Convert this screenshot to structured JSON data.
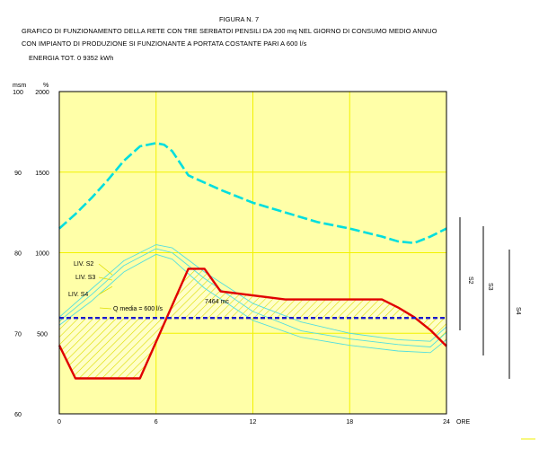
{
  "header": {
    "figure": "FIGURA N. 7",
    "line1": "GRAFICO DI FUNZIONAMENTO DELLA RETE CON TRE SERBATOI PENSILI DA 200 mq NEL GIORNO DI CONSUMO MEDIO ANNUO",
    "line2": "CON IMPIANTO DI PRODUZIONE SI FUNZIONANTE A PORTATA COSTANTE PARI A 600 l/s",
    "energy": "ENERGIA TOT. 0 9352 kWh"
  },
  "chart_data": {
    "type": "line",
    "title": "",
    "xlabel": "ORE",
    "y1label": "msm",
    "y2label": "%",
    "xlim": [
      0,
      24
    ],
    "y1lim": [
      60,
      100
    ],
    "y2lim": [
      0,
      2000
    ],
    "xticks": [
      "0",
      "6",
      "12",
      "18",
      "24"
    ],
    "y1ticks": [
      "60",
      "70",
      "80",
      "90",
      "100"
    ],
    "y2ticks": [
      "500",
      "1000",
      "1500",
      "2000"
    ],
    "grid": true,
    "colors": {
      "background": "#ffffa8",
      "grid": "#f2f200",
      "demand": "#00dede",
      "levels": "#55dede",
      "production": "#e00000",
      "mean": "#1a1acc",
      "hatch": "#dede00"
    },
    "series": [
      {
        "name": "",
        "role": "demand",
        "axis": "pct",
        "x": [
          0,
          1,
          2,
          3,
          4,
          5,
          6,
          6.5,
          7,
          8,
          10,
          12,
          14,
          16,
          18,
          20,
          21,
          22,
          23,
          24
        ],
        "y": [
          1150,
          1240,
          1340,
          1450,
          1570,
          1660,
          1680,
          1670,
          1630,
          1480,
          1390,
          1310,
          1250,
          1190,
          1150,
          1100,
          1070,
          1060,
          1100,
          1150
        ]
      },
      {
        "name": "LIV. S2",
        "role": "level",
        "axis": "msm",
        "x": [
          0,
          2,
          4,
          6,
          7,
          9,
          12,
          15,
          18,
          21,
          23,
          24
        ],
        "y": [
          72.0,
          75.5,
          79.0,
          81.0,
          80.6,
          77.6,
          73.7,
          71.4,
          70.0,
          69.2,
          69.0,
          70.8
        ]
      },
      {
        "name": "LIV. S3",
        "role": "level",
        "axis": "msm",
        "x": [
          0,
          2,
          4,
          6,
          7,
          9,
          12,
          15,
          18,
          21,
          23,
          24
        ],
        "y": [
          71.5,
          74.8,
          78.4,
          80.5,
          80.0,
          76.8,
          72.7,
          70.3,
          69.3,
          68.6,
          68.3,
          70.1
        ]
      },
      {
        "name": "LIV. S4",
        "role": "level",
        "axis": "msm",
        "x": [
          0,
          2,
          4,
          6,
          7,
          9,
          12,
          15,
          18,
          21,
          23,
          24
        ],
        "y": [
          71.0,
          74.0,
          77.6,
          79.8,
          79.2,
          75.6,
          71.6,
          69.5,
          68.5,
          67.8,
          67.6,
          69.2
        ]
      },
      {
        "name": "",
        "role": "production",
        "axis": "pct",
        "x": [
          0,
          1,
          5,
          8,
          9,
          10,
          14,
          16,
          20,
          21,
          22,
          23,
          24
        ],
        "y": [
          425,
          220,
          220,
          900,
          900,
          760,
          710,
          710,
          710,
          660,
          600,
          520,
          420
        ]
      },
      {
        "name": "Q media = 600 l/s",
        "role": "mean",
        "axis": "pct",
        "x": [
          0,
          24
        ],
        "y": [
          595,
          595
        ]
      }
    ],
    "annotations": [
      "LIV. S2",
      "LIV. S3",
      "LIV. S4",
      "Q media = 600 l/s",
      "7464 mc"
    ],
    "brackets": [
      "S2",
      "S3",
      "S4"
    ]
  }
}
